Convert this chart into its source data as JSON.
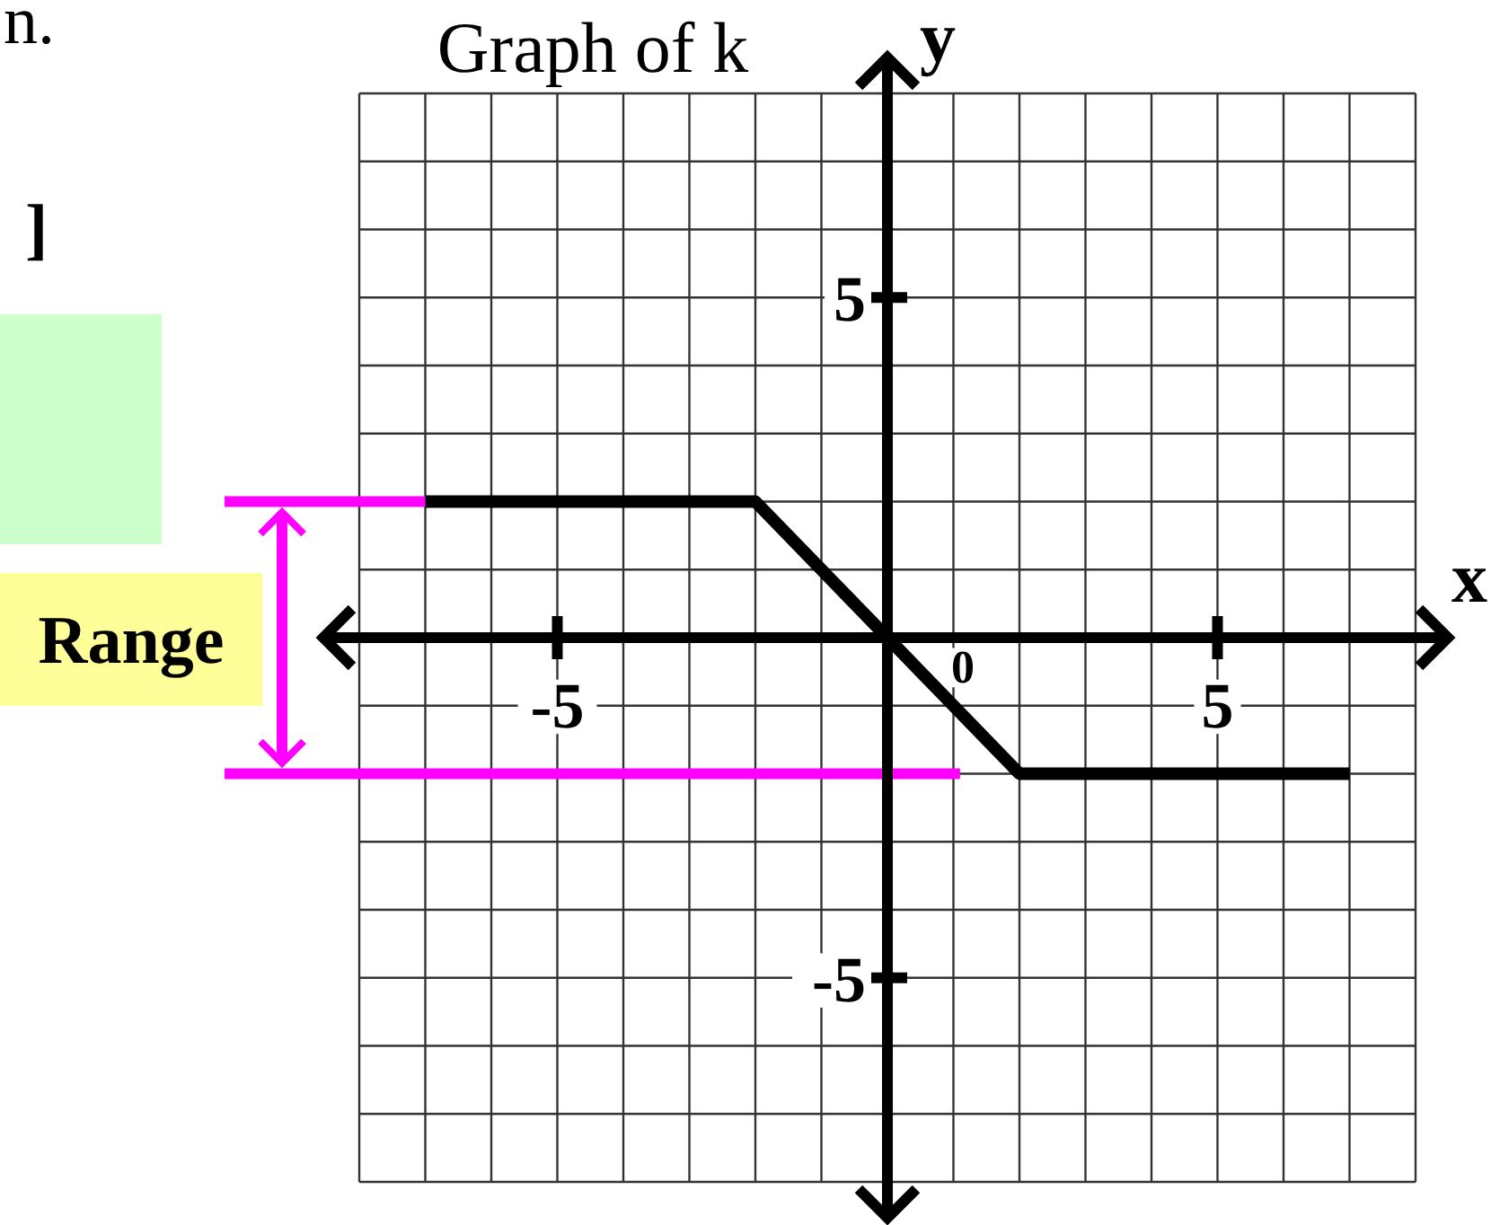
{
  "chart_data": {
    "type": "line",
    "title": "Graph of k",
    "xlabel": "x",
    "ylabel": "y",
    "x": [
      -7,
      -2,
      2,
      7
    ],
    "series": [
      {
        "color": "#000000",
        "values": [
          2,
          2,
          -2,
          -2
        ]
      },
      {
        "type": "line",
        "color": "#ff00ff",
        "x": [
          -8,
          -7
        ],
        "values": [
          2,
          2
        ]
      },
      {
        "type": "line",
        "color": "#ff00ff",
        "x": [
          -8,
          1.1
        ],
        "values": [
          -2,
          -2
        ]
      }
    ],
    "xlim": [
      -8,
      8
    ],
    "ylim": [
      -8,
      8
    ],
    "xticks": [
      {
        "value": -8,
        "label": null
      },
      {
        "value": -7,
        "label": null
      },
      {
        "value": -6,
        "label": null
      },
      -5,
      {
        "value": -4,
        "label": null
      },
      {
        "value": -3,
        "label": null
      },
      {
        "value": -2,
        "label": null
      },
      {
        "value": -1,
        "label": null
      },
      {
        "value": 0,
        "label": null
      },
      {
        "value": 1,
        "label": null
      },
      {
        "value": 2,
        "label": null
      },
      {
        "value": 3,
        "label": null
      },
      {
        "value": 4,
        "label": null
      },
      5,
      {
        "value": 6,
        "label": null
      },
      {
        "value": 7,
        "label": null
      },
      {
        "value": 8,
        "label": null
      }
    ],
    "yticks": [
      {
        "value": -8,
        "label": null
      },
      {
        "value": -7,
        "label": null
      },
      {
        "value": -6,
        "label": null
      },
      -5,
      {
        "value": -4,
        "label": null
      },
      {
        "value": -3,
        "label": null
      },
      {
        "value": -2,
        "label": null
      },
      {
        "value": -1,
        "label": null
      },
      {
        "value": 0,
        "label": null
      },
      {
        "value": 1,
        "label": null
      },
      {
        "value": 2,
        "label": null
      },
      {
        "value": 3,
        "label": null
      },
      {
        "value": 4,
        "label": null
      },
      5,
      {
        "value": 6,
        "label": null
      },
      {
        "value": 7,
        "label": null
      },
      {
        "value": 8,
        "label": null
      }
    ],
    "grid": true,
    "annotations": [
      "n.",
      "]",
      "Range",
      {
        "text": "0",
        "x": 0,
        "y": 0
      }
    ]
  }
}
